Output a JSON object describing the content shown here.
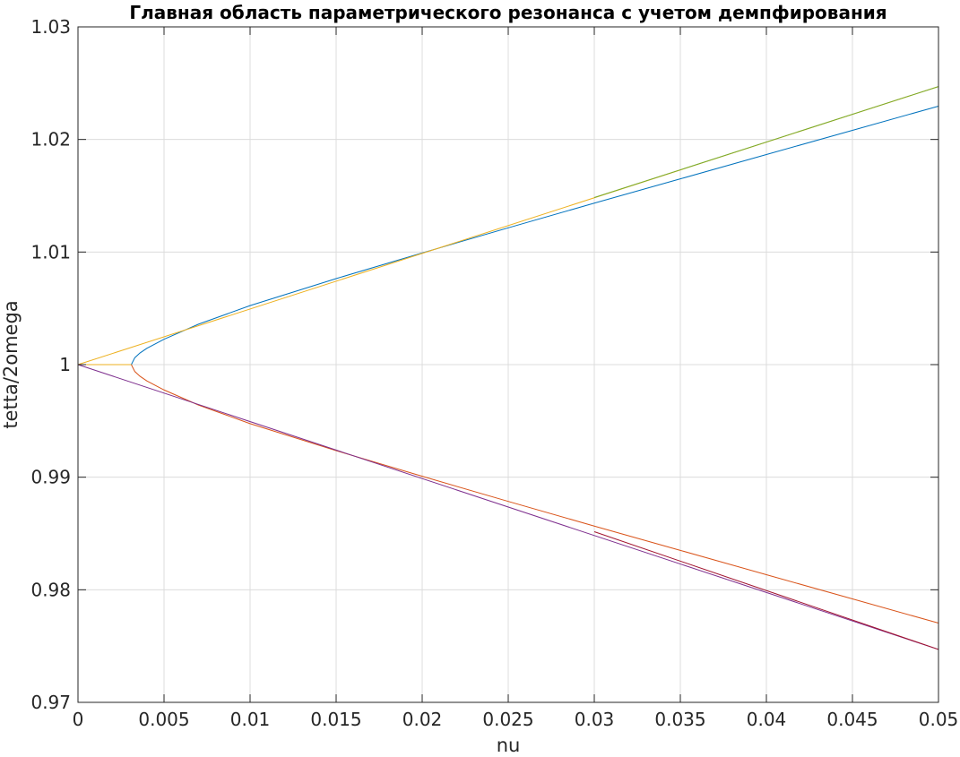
{
  "chart_data": {
    "type": "line",
    "title": "Главная область параметрического резонанса с учетом демпфирования",
    "xlabel": "nu",
    "ylabel": "tetta/2omega",
    "xlim": [
      0,
      0.05
    ],
    "ylim": [
      0.97,
      1.03
    ],
    "grid": true,
    "x_ticks": [
      0,
      0.005,
      0.01,
      0.015,
      0.02,
      0.025,
      0.03,
      0.035,
      0.04,
      0.045,
      0.05
    ],
    "x_tick_labels": [
      "0",
      "0.005",
      "0.01",
      "0.015",
      "0.02",
      "0.025",
      "0.03",
      "0.035",
      "0.04",
      "0.045",
      "0.05"
    ],
    "y_ticks": [
      0.97,
      0.98,
      0.99,
      1.0,
      1.01,
      1.02,
      1.03
    ],
    "y_tick_labels": [
      "0.97",
      "0.98",
      "0.99",
      "1",
      "1.01",
      "1.02",
      "1.03"
    ],
    "series": [
      {
        "color": "#0072BD",
        "x": [
          0.0031,
          0.0033,
          0.0036,
          0.004,
          0.005,
          0.007,
          0.01,
          0.015,
          0.02,
          0.025,
          0.03,
          0.035,
          0.04,
          0.045,
          0.05
        ],
        "y": [
          1.0,
          1.00061,
          1.00103,
          1.00145,
          1.00225,
          1.00359,
          1.00524,
          1.00764,
          1.00992,
          1.01215,
          1.01434,
          1.0165,
          1.01866,
          1.02081,
          1.02296
        ]
      },
      {
        "color": "#D95319",
        "x": [
          0.0031,
          0.0033,
          0.0036,
          0.004,
          0.005,
          0.007,
          0.01,
          0.015,
          0.02,
          0.025,
          0.03,
          0.035,
          0.04,
          0.045,
          0.05
        ],
        "y": [
          1.0,
          0.99939,
          0.99897,
          0.99855,
          0.99775,
          0.99641,
          0.99476,
          0.99236,
          0.99008,
          0.98785,
          0.98566,
          0.9835,
          0.98134,
          0.97919,
          0.97704
        ]
      },
      {
        "color": "#EDB120",
        "x": [
          0,
          0.05
        ],
        "y": [
          1.0,
          1.0247
        ]
      },
      {
        "color": "#7E2F8E",
        "x": [
          0,
          0.05
        ],
        "y": [
          1.0,
          0.9747
        ]
      },
      {
        "color": "#77AC30",
        "x": [
          0.03,
          0.05
        ],
        "y": [
          1.01484,
          1.0247
        ]
      },
      {
        "color": "#A2142F",
        "x": [
          0.03,
          0.05
        ],
        "y": [
          0.98516,
          0.9747
        ]
      },
      {
        "color": "#EDB120",
        "x": [
          0,
          0.0031
        ],
        "y": [
          1.0,
          1.0
        ]
      }
    ]
  }
}
